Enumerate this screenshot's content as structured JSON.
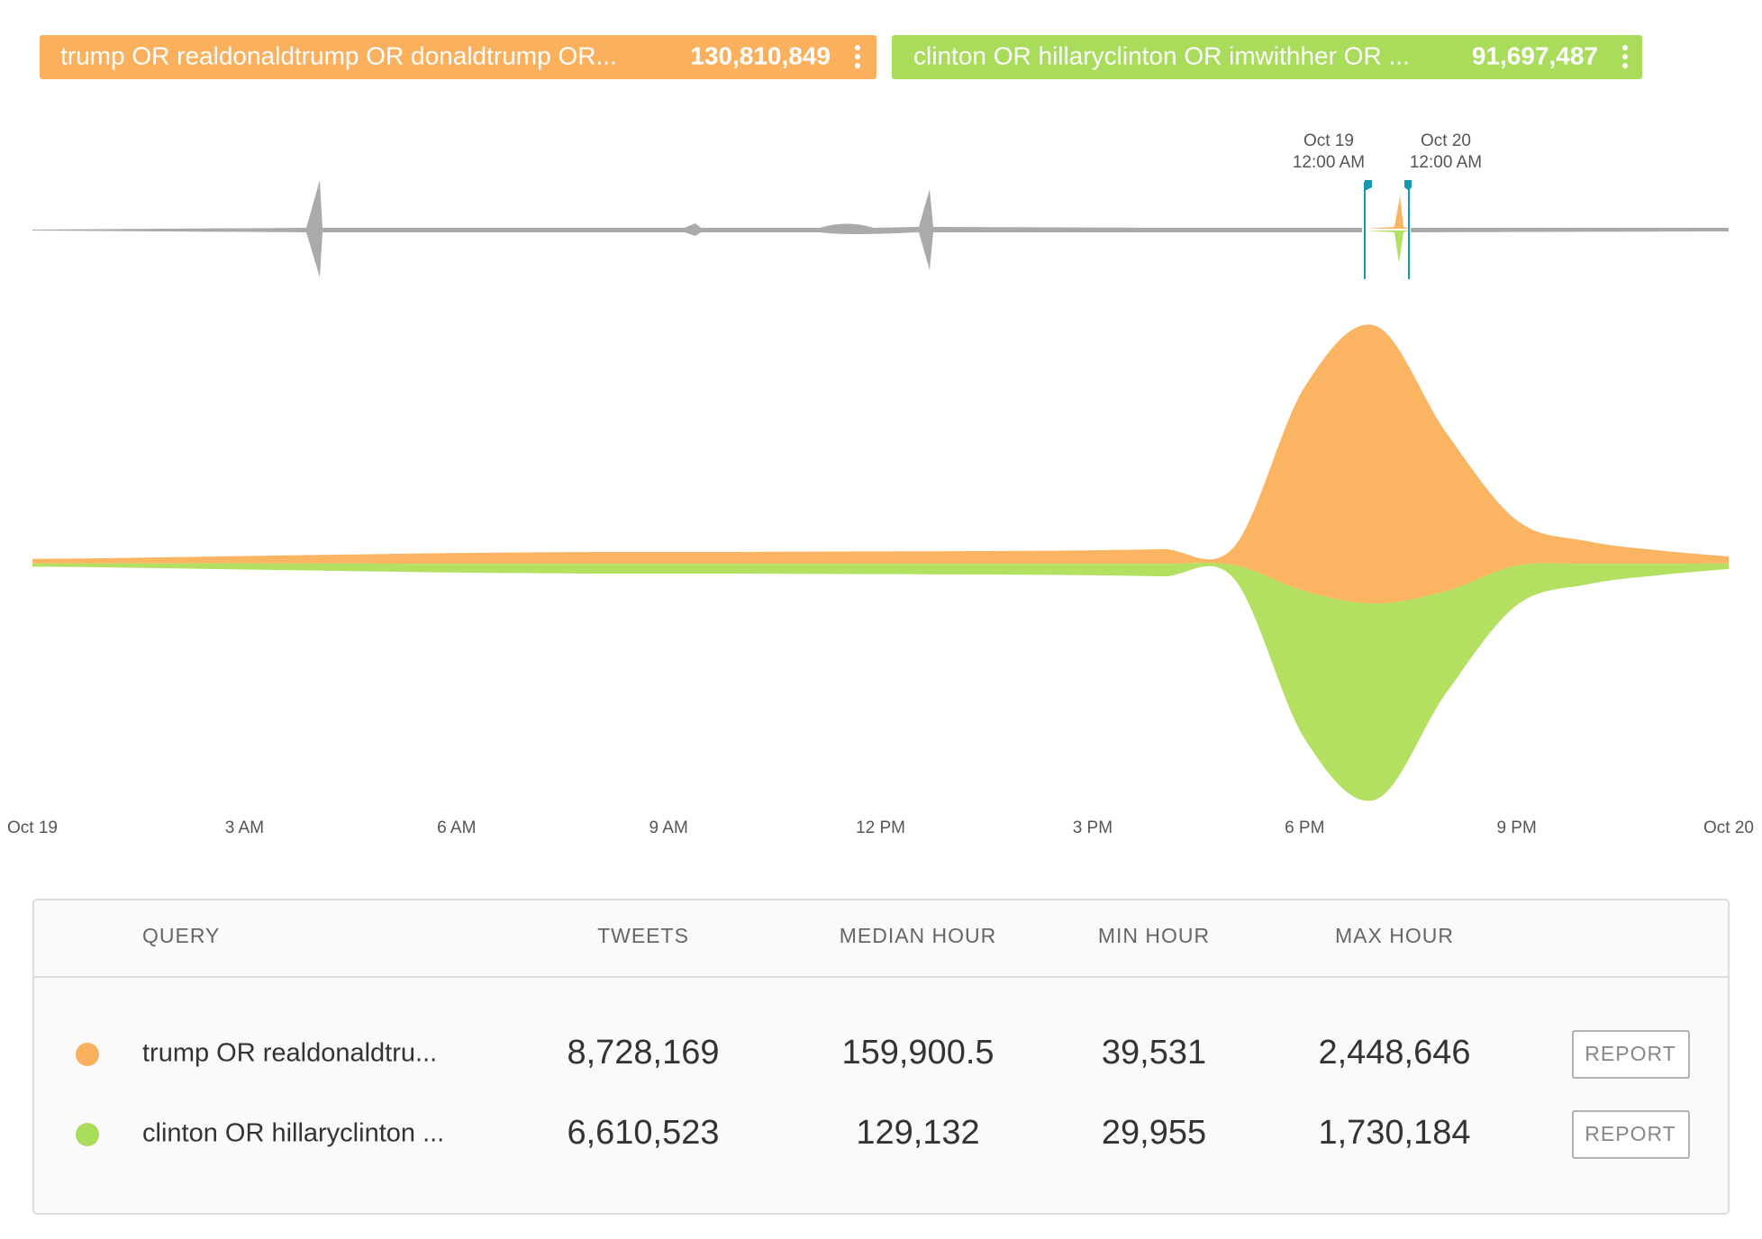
{
  "queries": [
    {
      "label": "trump OR realdonaldtrump OR donaldtrump OR...",
      "total": "130,810,849",
      "color": "#fbb05e"
    },
    {
      "label": "clinton OR hillaryclinton OR imwithher OR ...",
      "total": "91,697,487",
      "color": "#a8dc5a"
    }
  ],
  "brush": {
    "start": [
      "Oct 19",
      "12:00 AM"
    ],
    "end": [
      "Oct 20",
      "12:00 AM"
    ]
  },
  "chart_data": {
    "type": "streamgraph",
    "categories": [
      "Oct 19",
      null,
      null,
      "3 AM",
      null,
      null,
      "6 AM",
      null,
      null,
      "9 AM",
      null,
      null,
      "12 PM",
      null,
      null,
      "3 PM",
      null,
      null,
      "6 PM",
      null,
      null,
      "9 PM",
      null,
      null,
      "Oct 20"
    ],
    "series": [
      {
        "name": "trump",
        "color": "#fbb462",
        "values": [
          40000,
          45000,
          55000,
          65000,
          75000,
          85000,
          95000,
          100000,
          105000,
          105000,
          105000,
          108000,
          110000,
          112000,
          115000,
          120000,
          130000,
          160000,
          1800000,
          2448646,
          1400000,
          400000,
          200000,
          120000,
          60000
        ]
      },
      {
        "name": "clinton",
        "color": "#b3e061",
        "values": [
          30000,
          35000,
          45000,
          55000,
          62000,
          70000,
          78000,
          82000,
          85000,
          86000,
          86000,
          88000,
          90000,
          92000,
          95000,
          100000,
          110000,
          120000,
          1300000,
          1730184,
          900000,
          350000,
          180000,
          100000,
          50000
        ]
      }
    ]
  },
  "table": {
    "headers": [
      "QUERY",
      "TWEETS",
      "MEDIAN HOUR",
      "MIN HOUR",
      "MAX HOUR"
    ],
    "rows": [
      {
        "color": "#fbb05e",
        "cells": [
          "trump OR realdonaldtru...",
          "8,728,169",
          "159,900.5",
          "39,531",
          "2,448,646"
        ],
        "action": "REPORT"
      },
      {
        "color": "#a8dc5a",
        "cells": [
          "clinton OR hillaryclinton ...",
          "6,610,523",
          "129,132",
          "29,955",
          "1,730,184"
        ],
        "action": "REPORT"
      }
    ]
  }
}
